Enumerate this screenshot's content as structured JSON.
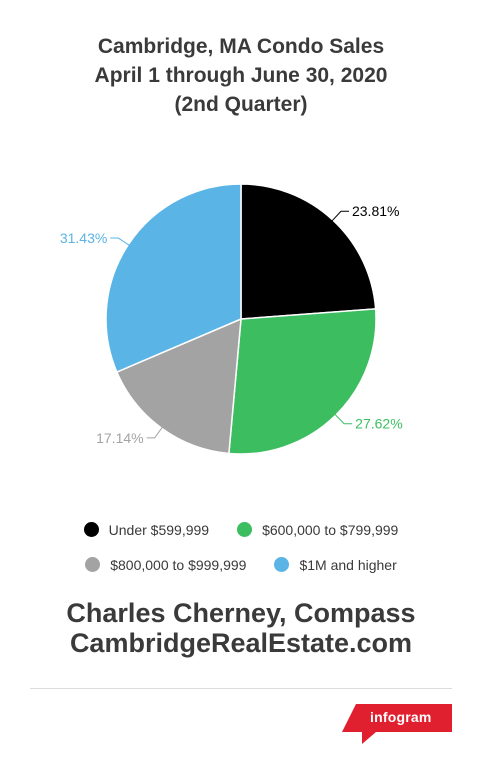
{
  "title": {
    "line1": "Cambridge, MA Condo Sales",
    "line2": "April 1 through June 30, 2020",
    "line3": "(2nd Quarter)"
  },
  "chart_data": {
    "type": "pie",
    "title": "Cambridge, MA Condo Sales April 1 through June 30, 2020 (2nd Quarter)",
    "slices": [
      {
        "label": "Under $599,999",
        "value": 23.81,
        "value_label": "23.81%",
        "color": "#000000",
        "label_color": "#000000"
      },
      {
        "label": "$600,000 to $799,999",
        "value": 27.62,
        "value_label": "27.62%",
        "color": "#3cbe60",
        "label_color": "#3cbe60"
      },
      {
        "label": "$800,000 to $999,999",
        "value": 17.14,
        "value_label": "17.14%",
        "color": "#a3a3a3",
        "label_color": "#a3a3a3"
      },
      {
        "label": "$1M and higher",
        "value": 31.43,
        "value_label": "31.43%",
        "color": "#5ab4e5",
        "label_color": "#5ab4e5"
      }
    ],
    "legend_position": "bottom"
  },
  "legend": [
    {
      "label": "Under $599,999",
      "color": "#000000"
    },
    {
      "label": "$600,000 to $799,999",
      "color": "#3cbe60"
    },
    {
      "label": "$800,000 to $999,999",
      "color": "#a3a3a3"
    },
    {
      "label": "$1M and higher",
      "color": "#5ab4e5"
    }
  ],
  "footer": {
    "line1": "Charles Cherney, Compass",
    "line2": "CambridgeRealEstate.com"
  },
  "brand": {
    "label": "infogram",
    "color": "#e0202f"
  }
}
